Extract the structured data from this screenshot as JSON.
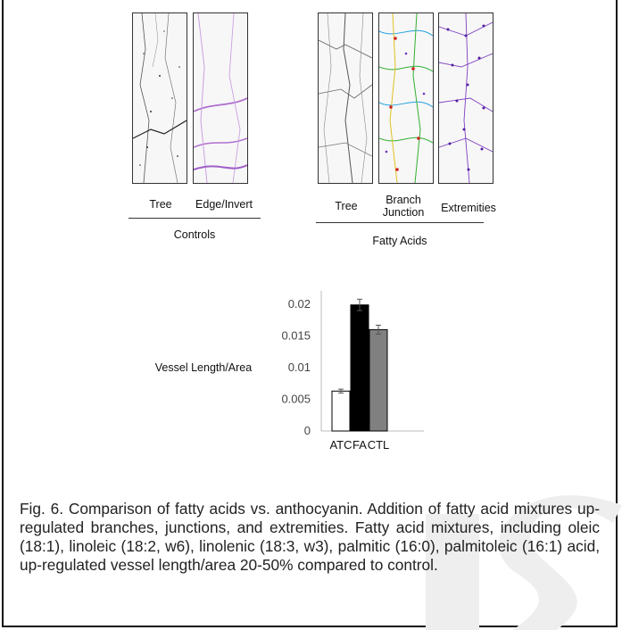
{
  "panels": {
    "controls": {
      "group_label": "Controls",
      "items": [
        {
          "label": "Tree"
        },
        {
          "label": "Edge/Invert"
        }
      ]
    },
    "fatty_acids": {
      "group_label": "Fatty Acids",
      "items": [
        {
          "label": "Tree"
        },
        {
          "label": "Branch\nJunction"
        },
        {
          "label": "Extremities"
        }
      ]
    }
  },
  "chart_data": {
    "type": "bar",
    "categories": [
      "ATC",
      "FA",
      "CTL"
    ],
    "values": [
      0.0063,
      0.0199,
      0.016
    ],
    "errors": [
      0.0003,
      0.0009,
      0.0007
    ],
    "colors": [
      "#ffffff",
      "#000000",
      "#808080"
    ],
    "ylabel": "Vessel Length/Area",
    "yticks": [
      "0",
      "0.005",
      "0.01",
      "0.015",
      "0.02"
    ],
    "ylim": [
      0,
      0.02
    ],
    "grid": false
  },
  "caption": "Fig. 6. Comparison of fatty acids vs. anthocyanin. Addition of fatty acid mixtures up-regulated branches, junctions, and extremities. Fatty acid mixtures, including oleic (18:1), linoleic (18:2, w6), linolenic (18:3, w3), palmitic (16:0), palmitoleic (16:1) acid, up-regulated vessel length/area 20-50% compared to control."
}
